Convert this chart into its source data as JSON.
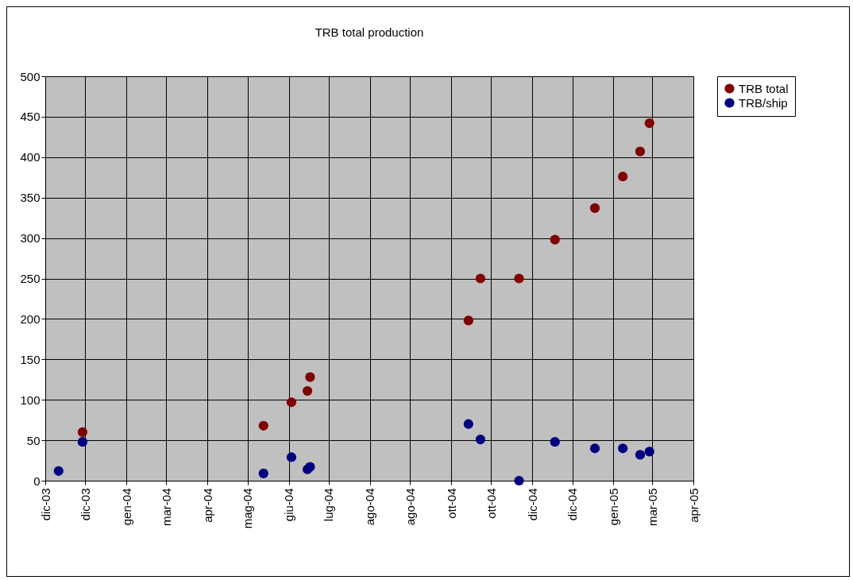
{
  "chart_data": {
    "type": "scatter",
    "title": "TRB total production",
    "x": [
      "2003-12-11",
      "2003-12-29",
      "2004-05-13",
      "2004-06-03",
      "2004-06-15",
      "2004-06-17",
      "2004-10-14",
      "2004-10-23",
      "2004-11-21",
      "2004-12-18",
      "2005-01-17",
      "2005-02-07",
      "2005-02-20",
      "2005-02-27"
    ],
    "series": [
      {
        "name": "TRB total",
        "color": "#800000",
        "values": [
          null,
          60,
          68,
          97,
          111,
          128,
          198,
          250,
          250,
          298,
          337,
          376,
          407,
          442
        ]
      },
      {
        "name": "TRB/ship",
        "color": "#000080",
        "values": [
          12,
          48,
          9,
          29,
          14,
          17,
          70,
          51,
          0,
          48,
          40,
          40,
          32,
          36
        ]
      }
    ],
    "xlim": [
      "2003-12-01",
      "2005-04-01"
    ],
    "xticks": [
      {
        "value": "2003-12-01",
        "label": "dic-03"
      },
      {
        "value": "2003-12-31",
        "label": "dic-03"
      },
      {
        "value": "2004-01-31",
        "label": "gen-04"
      },
      {
        "value": "2004-03-01",
        "label": "mar-04"
      },
      {
        "value": "2004-04-01",
        "label": "apr-04"
      },
      {
        "value": "2004-05-01",
        "label": "mag-04"
      },
      {
        "value": "2004-06-01",
        "label": "giu-04"
      },
      {
        "value": "2004-07-01",
        "label": "lug-04"
      },
      {
        "value": "2004-08-01",
        "label": "ago-04"
      },
      {
        "value": "2004-08-31",
        "label": "ago-04"
      },
      {
        "value": "2004-10-01",
        "label": "ott-04"
      },
      {
        "value": "2004-10-31",
        "label": "ott-04"
      },
      {
        "value": "2004-12-01",
        "label": "dic-04"
      },
      {
        "value": "2004-12-31",
        "label": "dic-04"
      },
      {
        "value": "2005-01-31",
        "label": "gen-05"
      },
      {
        "value": "2005-03-01",
        "label": "mar-05"
      },
      {
        "value": "2005-04-01",
        "label": "apr-05"
      }
    ],
    "ylim": [
      0,
      500
    ],
    "yticks": [
      0,
      50,
      100,
      150,
      200,
      250,
      300,
      350,
      400,
      450,
      500
    ],
    "grid": true,
    "legend": "right",
    "marker": "circle"
  }
}
